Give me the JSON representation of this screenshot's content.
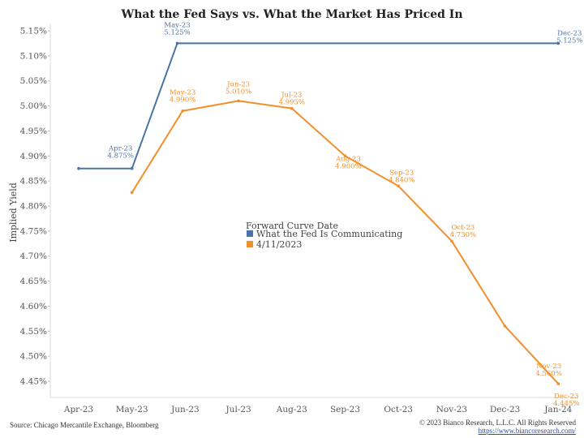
{
  "chart_data": {
    "type": "line",
    "title": "What the Fed Says vs. What the Market Has Priced In",
    "ylabel": "Implied Yield",
    "xlabel": "",
    "categories": [
      "Apr-23",
      "May-23",
      "Jun-23",
      "Jul-23",
      "Aug-23",
      "Sep-23",
      "Oct-23",
      "Nov-23",
      "Dec-23",
      "Jan-24"
    ],
    "yticks": [
      "4.45%",
      "4.50%",
      "4.55%",
      "4.60%",
      "4.65%",
      "4.70%",
      "4.75%",
      "4.80%",
      "4.85%",
      "4.90%",
      "4.95%",
      "5.00%",
      "5.05%",
      "5.10%",
      "5.15%"
    ],
    "ylim": [
      4.42,
      5.165
    ],
    "grid": false,
    "legend": {
      "title": "Forward Curve Date",
      "position": "center",
      "entries": [
        "What the Fed Is Communicating",
        "4/11/2023"
      ]
    },
    "series": [
      {
        "name": "What the Fed Is Communicating",
        "color": "#4a73a8",
        "points": [
          {
            "x": 0.0,
            "y": 4.875
          },
          {
            "x": 1.0,
            "y": 4.875,
            "label": "Apr-23",
            "value": "4.875%"
          },
          {
            "x": 1.85,
            "y": 5.125,
            "label": "May-23",
            "value": "5.125%"
          },
          {
            "x": 9.0,
            "y": 5.125,
            "label": "Dec-23",
            "value": "5.125%"
          }
        ]
      },
      {
        "name": "4/11/2023",
        "color": "#f28e2b",
        "points": [
          {
            "x": 1.0,
            "y": 4.827
          },
          {
            "x": 1.95,
            "y": 4.99,
            "label": "May-23",
            "value": "4.990%"
          },
          {
            "x": 3.0,
            "y": 5.01,
            "label": "Jun-23",
            "value": "5.010%"
          },
          {
            "x": 4.0,
            "y": 4.995,
            "label": "Jul-23",
            "value": "4.995%"
          },
          {
            "x": 5.0,
            "y": 4.9,
            "label": "Aug-23",
            "value": "4.900%"
          },
          {
            "x": 6.0,
            "y": 4.84,
            "label": "Sep-23",
            "value": "4.840%"
          },
          {
            "x": 7.0,
            "y": 4.73,
            "label": "Oct-23",
            "value": "4.730%"
          },
          {
            "x": 8.0,
            "y": 4.56,
            "label": "Nov-23",
            "value": "4.560%"
          },
          {
            "x": 9.0,
            "y": 4.445,
            "label": "Dec-23",
            "value": "4.445%"
          }
        ]
      }
    ]
  },
  "footer": {
    "source": "Source: Chicago Mercantile Exchange, Bloomberg",
    "copyright": "© 2023 Bianco Research, L.L.C. All Rights Reserved",
    "url": "https://www.biancoresearch.com/"
  }
}
